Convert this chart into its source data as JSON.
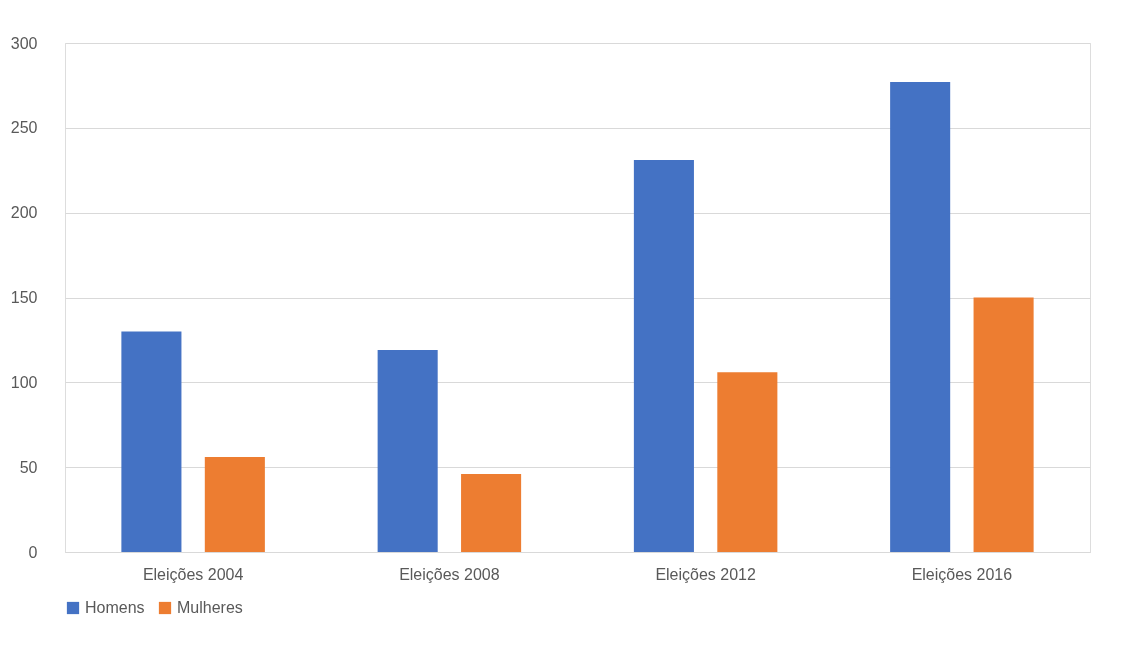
{
  "chart_data": {
    "type": "bar",
    "categories": [
      "Eleições 2004",
      "Eleições 2008",
      "Eleições 2012",
      "Eleições 2016"
    ],
    "series": [
      {
        "name": "Homens",
        "color": "#4472c4",
        "values": [
          130,
          119,
          231,
          277
        ]
      },
      {
        "name": "Mulheres",
        "color": "#ed7d31",
        "values": [
          56,
          46,
          106,
          150
        ]
      }
    ],
    "ylim": [
      0,
      300
    ],
    "yticks": [
      0,
      50,
      100,
      150,
      200,
      250,
      300
    ],
    "grid": "y",
    "legend": "bottom"
  }
}
